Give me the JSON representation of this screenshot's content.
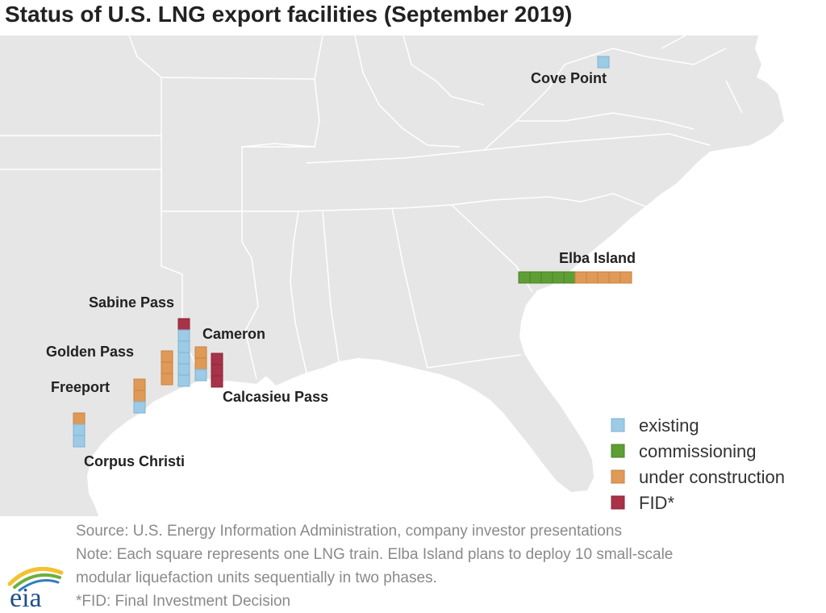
{
  "title": "Status of U.S. LNG export facilities (September 2019)",
  "colors": {
    "existing": "#9dcbe6",
    "commissioning": "#5e9e35",
    "under_construction": "#df9a57",
    "fid": "#a83248",
    "land": "#e6e6e6",
    "border": "#ffffff"
  },
  "legend": [
    {
      "key": "existing",
      "label": "existing"
    },
    {
      "key": "commissioning",
      "label": "commissioning"
    },
    {
      "key": "under_construction",
      "label": "under construction"
    },
    {
      "key": "fid",
      "label": "FID*"
    }
  ],
  "facilities": [
    {
      "name": "Cove Point",
      "trains": {
        "existing": 1,
        "commissioning": 0,
        "under_construction": 0,
        "fid": 0
      }
    },
    {
      "name": "Elba Island",
      "trains": {
        "existing": 0,
        "commissioning": 5,
        "under_construction": 5,
        "fid": 0
      }
    },
    {
      "name": "Sabine Pass",
      "trains": {
        "existing": 5,
        "commissioning": 0,
        "under_construction": 0,
        "fid": 1
      }
    },
    {
      "name": "Cameron",
      "trains": {
        "existing": 1,
        "commissioning": 0,
        "under_construction": 2,
        "fid": 0
      }
    },
    {
      "name": "Golden Pass",
      "trains": {
        "existing": 0,
        "commissioning": 0,
        "under_construction": 3,
        "fid": 0
      }
    },
    {
      "name": "Calcasieu Pass",
      "trains": {
        "existing": 0,
        "commissioning": 0,
        "under_construction": 0,
        "fid": 3
      }
    },
    {
      "name": "Freeport",
      "trains": {
        "existing": 1,
        "commissioning": 0,
        "under_construction": 2,
        "fid": 0
      }
    },
    {
      "name": "Corpus Christi",
      "trains": {
        "existing": 2,
        "commissioning": 0,
        "under_construction": 1,
        "fid": 0
      }
    }
  ],
  "notes": {
    "source": "Source: U.S. Energy Information Administration, company investor presentations",
    "note_line1": "Note: Each square represents one LNG train. Elba Island plans to deploy 10 small-scale",
    "note_line2": "modular liquefaction units sequentially in two phases.",
    "fid_definition": "*FID: Final Investment Decision"
  },
  "logo_text": "eia"
}
